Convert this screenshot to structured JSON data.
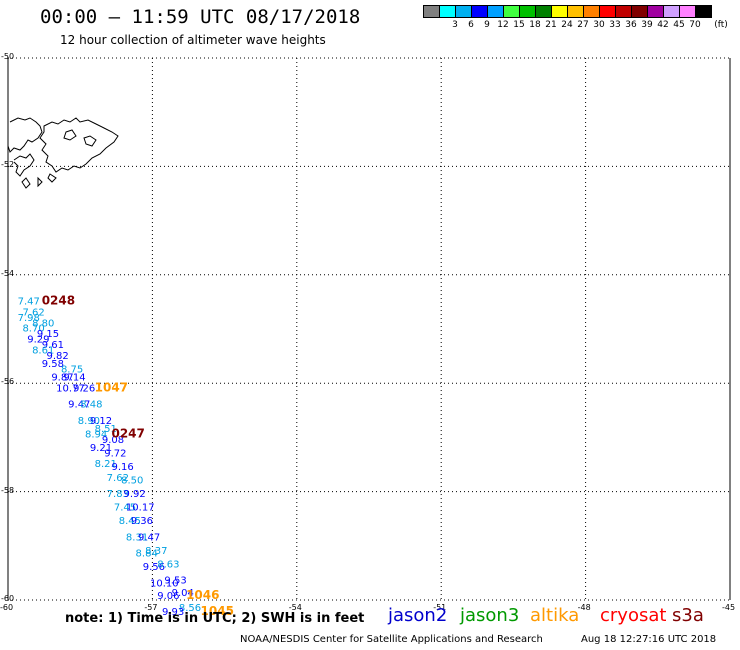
{
  "header": {
    "title": "00:00 – 11:59 UTC 08/17/2018",
    "subtitle": "12 hour collection of altimeter wave heights"
  },
  "legend": {
    "unit": "(ft)",
    "items": [
      {
        "label": "",
        "color": "#808080"
      },
      {
        "label": "3",
        "color": "#00ffff"
      },
      {
        "label": "6",
        "color": "#00b0f0"
      },
      {
        "label": "9",
        "color": "#0000ff"
      },
      {
        "label": "12",
        "color": "#00a0ff"
      },
      {
        "label": "15",
        "color": "#40ff40"
      },
      {
        "label": "18",
        "color": "#00c000"
      },
      {
        "label": "21",
        "color": "#008000"
      },
      {
        "label": "24",
        "color": "#ffff00"
      },
      {
        "label": "27",
        "color": "#ffc000"
      },
      {
        "label": "30",
        "color": "#ff8000"
      },
      {
        "label": "33",
        "color": "#ff0000"
      },
      {
        "label": "36",
        "color": "#c00000"
      },
      {
        "label": "39",
        "color": "#800000"
      },
      {
        "label": "42",
        "color": "#a000a0"
      },
      {
        "label": "45",
        "color": "#d0a0ff"
      },
      {
        "label": "70",
        "color": "#ff80ff"
      },
      {
        "label": "",
        "color": "#000000"
      }
    ]
  },
  "axes": {
    "lat_labels": [
      "-50",
      "-52",
      "-54",
      "-56",
      "-58",
      "-60"
    ],
    "lon_labels": [
      "-60",
      "-57",
      "-54",
      "-51",
      "-48",
      "-45"
    ]
  },
  "observations": [
    {
      "value": "7.47",
      "lon": -59.8,
      "lat": -54.55,
      "color": "#00a0e0"
    },
    {
      "value": "7.62",
      "lon": -59.7,
      "lat": -54.75,
      "color": "#00a0e0"
    },
    {
      "value": "7.98",
      "lon": -59.8,
      "lat": -54.85,
      "color": "#00a0e0"
    },
    {
      "value": "8.80",
      "lon": -59.5,
      "lat": -54.95,
      "color": "#00a0e0"
    },
    {
      "value": "8.70",
      "lon": -59.7,
      "lat": -55.05,
      "color": "#00a0e0"
    },
    {
      "value": "9.15",
      "lon": -59.4,
      "lat": -55.15,
      "color": "#0000ff"
    },
    {
      "value": "9.29",
      "lon": -59.6,
      "lat": -55.25,
      "color": "#0000ff"
    },
    {
      "value": "9.61",
      "lon": -59.3,
      "lat": -55.35,
      "color": "#0000ff"
    },
    {
      "value": "8.61",
      "lon": -59.5,
      "lat": -55.45,
      "color": "#00a0e0"
    },
    {
      "value": "9.82",
      "lon": -59.2,
      "lat": -55.55,
      "color": "#0000ff"
    },
    {
      "value": "9.58",
      "lon": -59.3,
      "lat": -55.7,
      "color": "#0000ff"
    },
    {
      "value": "8.75",
      "lon": -58.9,
      "lat": -55.8,
      "color": "#00a0e0"
    },
    {
      "value": "9.87",
      "lon": -59.1,
      "lat": -55.95,
      "color": "#0000ff"
    },
    {
      "value": "9.14",
      "lon": -58.85,
      "lat": -55.95,
      "color": "#0000ff"
    },
    {
      "value": "10.77",
      "lon": -59.0,
      "lat": -56.15,
      "color": "#0000ff"
    },
    {
      "value": "9.26",
      "lon": -58.65,
      "lat": -56.15,
      "color": "#0000ff"
    },
    {
      "value": "9.47",
      "lon": -58.75,
      "lat": -56.45,
      "color": "#0000ff"
    },
    {
      "value": "8.48",
      "lon": -58.5,
      "lat": -56.45,
      "color": "#00a0e0"
    },
    {
      "value": "8.90",
      "lon": -58.55,
      "lat": -56.75,
      "color": "#00a0e0"
    },
    {
      "value": "9.12",
      "lon": -58.3,
      "lat": -56.75,
      "color": "#0000ff"
    },
    {
      "value": "8.51",
      "lon": -58.2,
      "lat": -56.9,
      "color": "#00a0e0"
    },
    {
      "value": "8.94",
      "lon": -58.4,
      "lat": -57.0,
      "color": "#00a0e0"
    },
    {
      "value": "9.08",
      "lon": -58.05,
      "lat": -57.1,
      "color": "#0000ff"
    },
    {
      "value": "9.21",
      "lon": -58.3,
      "lat": -57.25,
      "color": "#0000ff"
    },
    {
      "value": "9.72",
      "lon": -58.0,
      "lat": -57.35,
      "color": "#0000ff"
    },
    {
      "value": "8.21",
      "lon": -58.2,
      "lat": -57.55,
      "color": "#00a0e0"
    },
    {
      "value": "9.16",
      "lon": -57.85,
      "lat": -57.6,
      "color": "#0000ff"
    },
    {
      "value": "7.62",
      "lon": -57.95,
      "lat": -57.8,
      "color": "#00a0e0"
    },
    {
      "value": "8.50",
      "lon": -57.65,
      "lat": -57.85,
      "color": "#00a0e0"
    },
    {
      "value": "7.83",
      "lon": -57.95,
      "lat": -58.1,
      "color": "#00a0e0"
    },
    {
      "value": "9.92",
      "lon": -57.6,
      "lat": -58.1,
      "color": "#0000ff"
    },
    {
      "value": "7.45",
      "lon": -57.8,
      "lat": -58.35,
      "color": "#00a0e0"
    },
    {
      "value": "10.17",
      "lon": -57.55,
      "lat": -58.35,
      "color": "#0000ff"
    },
    {
      "value": "8.45",
      "lon": -57.7,
      "lat": -58.6,
      "color": "#00a0e0"
    },
    {
      "value": "9.36",
      "lon": -57.45,
      "lat": -58.6,
      "color": "#0000ff"
    },
    {
      "value": "8.31",
      "lon": -57.55,
      "lat": -58.9,
      "color": "#00a0e0"
    },
    {
      "value": "9.47",
      "lon": -57.3,
      "lat": -58.9,
      "color": "#0000ff"
    },
    {
      "value": "8.84",
      "lon": -57.35,
      "lat": -59.2,
      "color": "#00a0e0"
    },
    {
      "value": "8.37",
      "lon": -57.15,
      "lat": -59.15,
      "color": "#00a0e0"
    },
    {
      "value": "9.56",
      "lon": -57.2,
      "lat": -59.45,
      "color": "#0000ff"
    },
    {
      "value": "8.63",
      "lon": -56.9,
      "lat": -59.4,
      "color": "#00a0e0"
    },
    {
      "value": "10.10",
      "lon": -57.05,
      "lat": -59.75,
      "color": "#0000ff"
    },
    {
      "value": "9.53",
      "lon": -56.75,
      "lat": -59.7,
      "color": "#0000ff"
    },
    {
      "value": "9.06",
      "lon": -56.9,
      "lat": -59.98,
      "color": "#0000ff"
    },
    {
      "value": "9.04",
      "lon": -56.6,
      "lat": -59.93,
      "color": "#0000ff"
    },
    {
      "value": "8.56",
      "lon": -56.45,
      "lat": -60.2,
      "color": "#00a0e0"
    },
    {
      "value": "9.93",
      "lon": -56.8,
      "lat": -60.28,
      "color": "#0000ff"
    }
  ],
  "pass_times": [
    {
      "text": "0248",
      "lon": -59.3,
      "lat": -54.55,
      "color": "#800000"
    },
    {
      "text": "1047",
      "lon": -58.2,
      "lat": -56.15,
      "color": "#ff9900"
    },
    {
      "text": "0247",
      "lon": -57.85,
      "lat": -57.0,
      "color": "#800000"
    },
    {
      "text": "1046",
      "lon": -56.3,
      "lat": -59.98,
      "color": "#ff9900"
    },
    {
      "text": "1045",
      "lon": -56.0,
      "lat": -60.28,
      "color": "#ff9900"
    }
  ],
  "footer": {
    "note": "note: 1) Time is in UTC; 2) SWH is in feet",
    "satellites": [
      {
        "name": "jason2",
        "color": "#0000cc"
      },
      {
        "name": "jason3",
        "color": "#009900"
      },
      {
        "name": "altika",
        "color": "#ff9900"
      },
      {
        "name": "cryosat",
        "color": "#ff0000"
      },
      {
        "name": "s3a",
        "color": "#800000"
      }
    ],
    "credit": "NOAA/NESDIS Center for Satellite Applications and Research",
    "timestamp": "Aug 18 12:27:16 UTC 2018"
  }
}
